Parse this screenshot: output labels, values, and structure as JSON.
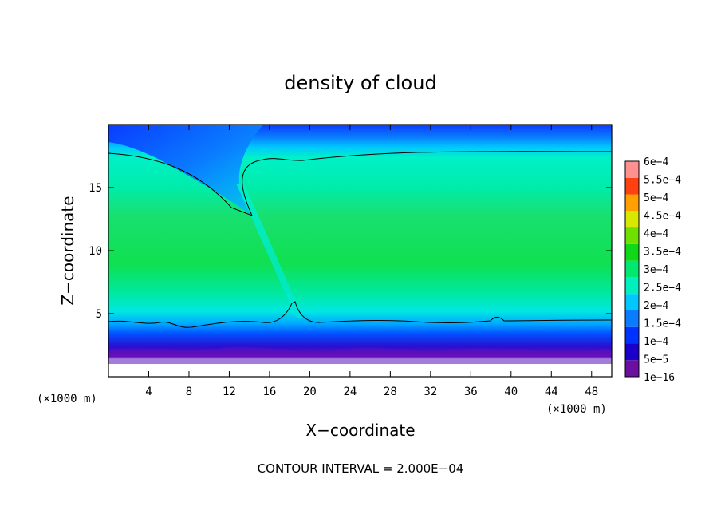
{
  "chart_data": {
    "type": "heatmap",
    "title": "density of cloud",
    "xlabel": "X−coordinate",
    "ylabel": "Z−coordinate",
    "x_unit": "(×1000 m)",
    "y_unit": "(×1000 m)",
    "xlim": [
      0,
      50
    ],
    "ylim": [
      0,
      20
    ],
    "x_ticks": [
      4,
      8,
      12,
      16,
      20,
      24,
      28,
      32,
      36,
      40,
      44,
      48
    ],
    "y_ticks": [
      5,
      10,
      15
    ],
    "contour_interval": "CONTOUR INTERVAL = 2.000E−04",
    "colorbar": {
      "labels": [
        "1e−16",
        "5e−5",
        "1e−4",
        "1.5e−4",
        "2e−4",
        "2.5e−4",
        "3e−4",
        "3.5e−4",
        "4e−4",
        "4.5e−4",
        "5e−4",
        "5.5e−4",
        "6e−4"
      ],
      "colors": [
        "#6a0fa0",
        "#1a00c8",
        "#0032ff",
        "#0a7cff",
        "#00c8ff",
        "#00f0c0",
        "#00e870",
        "#10d818",
        "#70e000",
        "#d8e800",
        "#ffa000",
        "#ff4010",
        "#ff9090"
      ]
    },
    "colors": {
      "top_band": "#0a3cff",
      "bulk": "#18e070",
      "upper_cyan": "#00f0c8",
      "lower_cyan": "#00e0e8",
      "base_blue": "#0050ff",
      "base_purple": "#7a10b0",
      "contour": "#000000"
    }
  }
}
